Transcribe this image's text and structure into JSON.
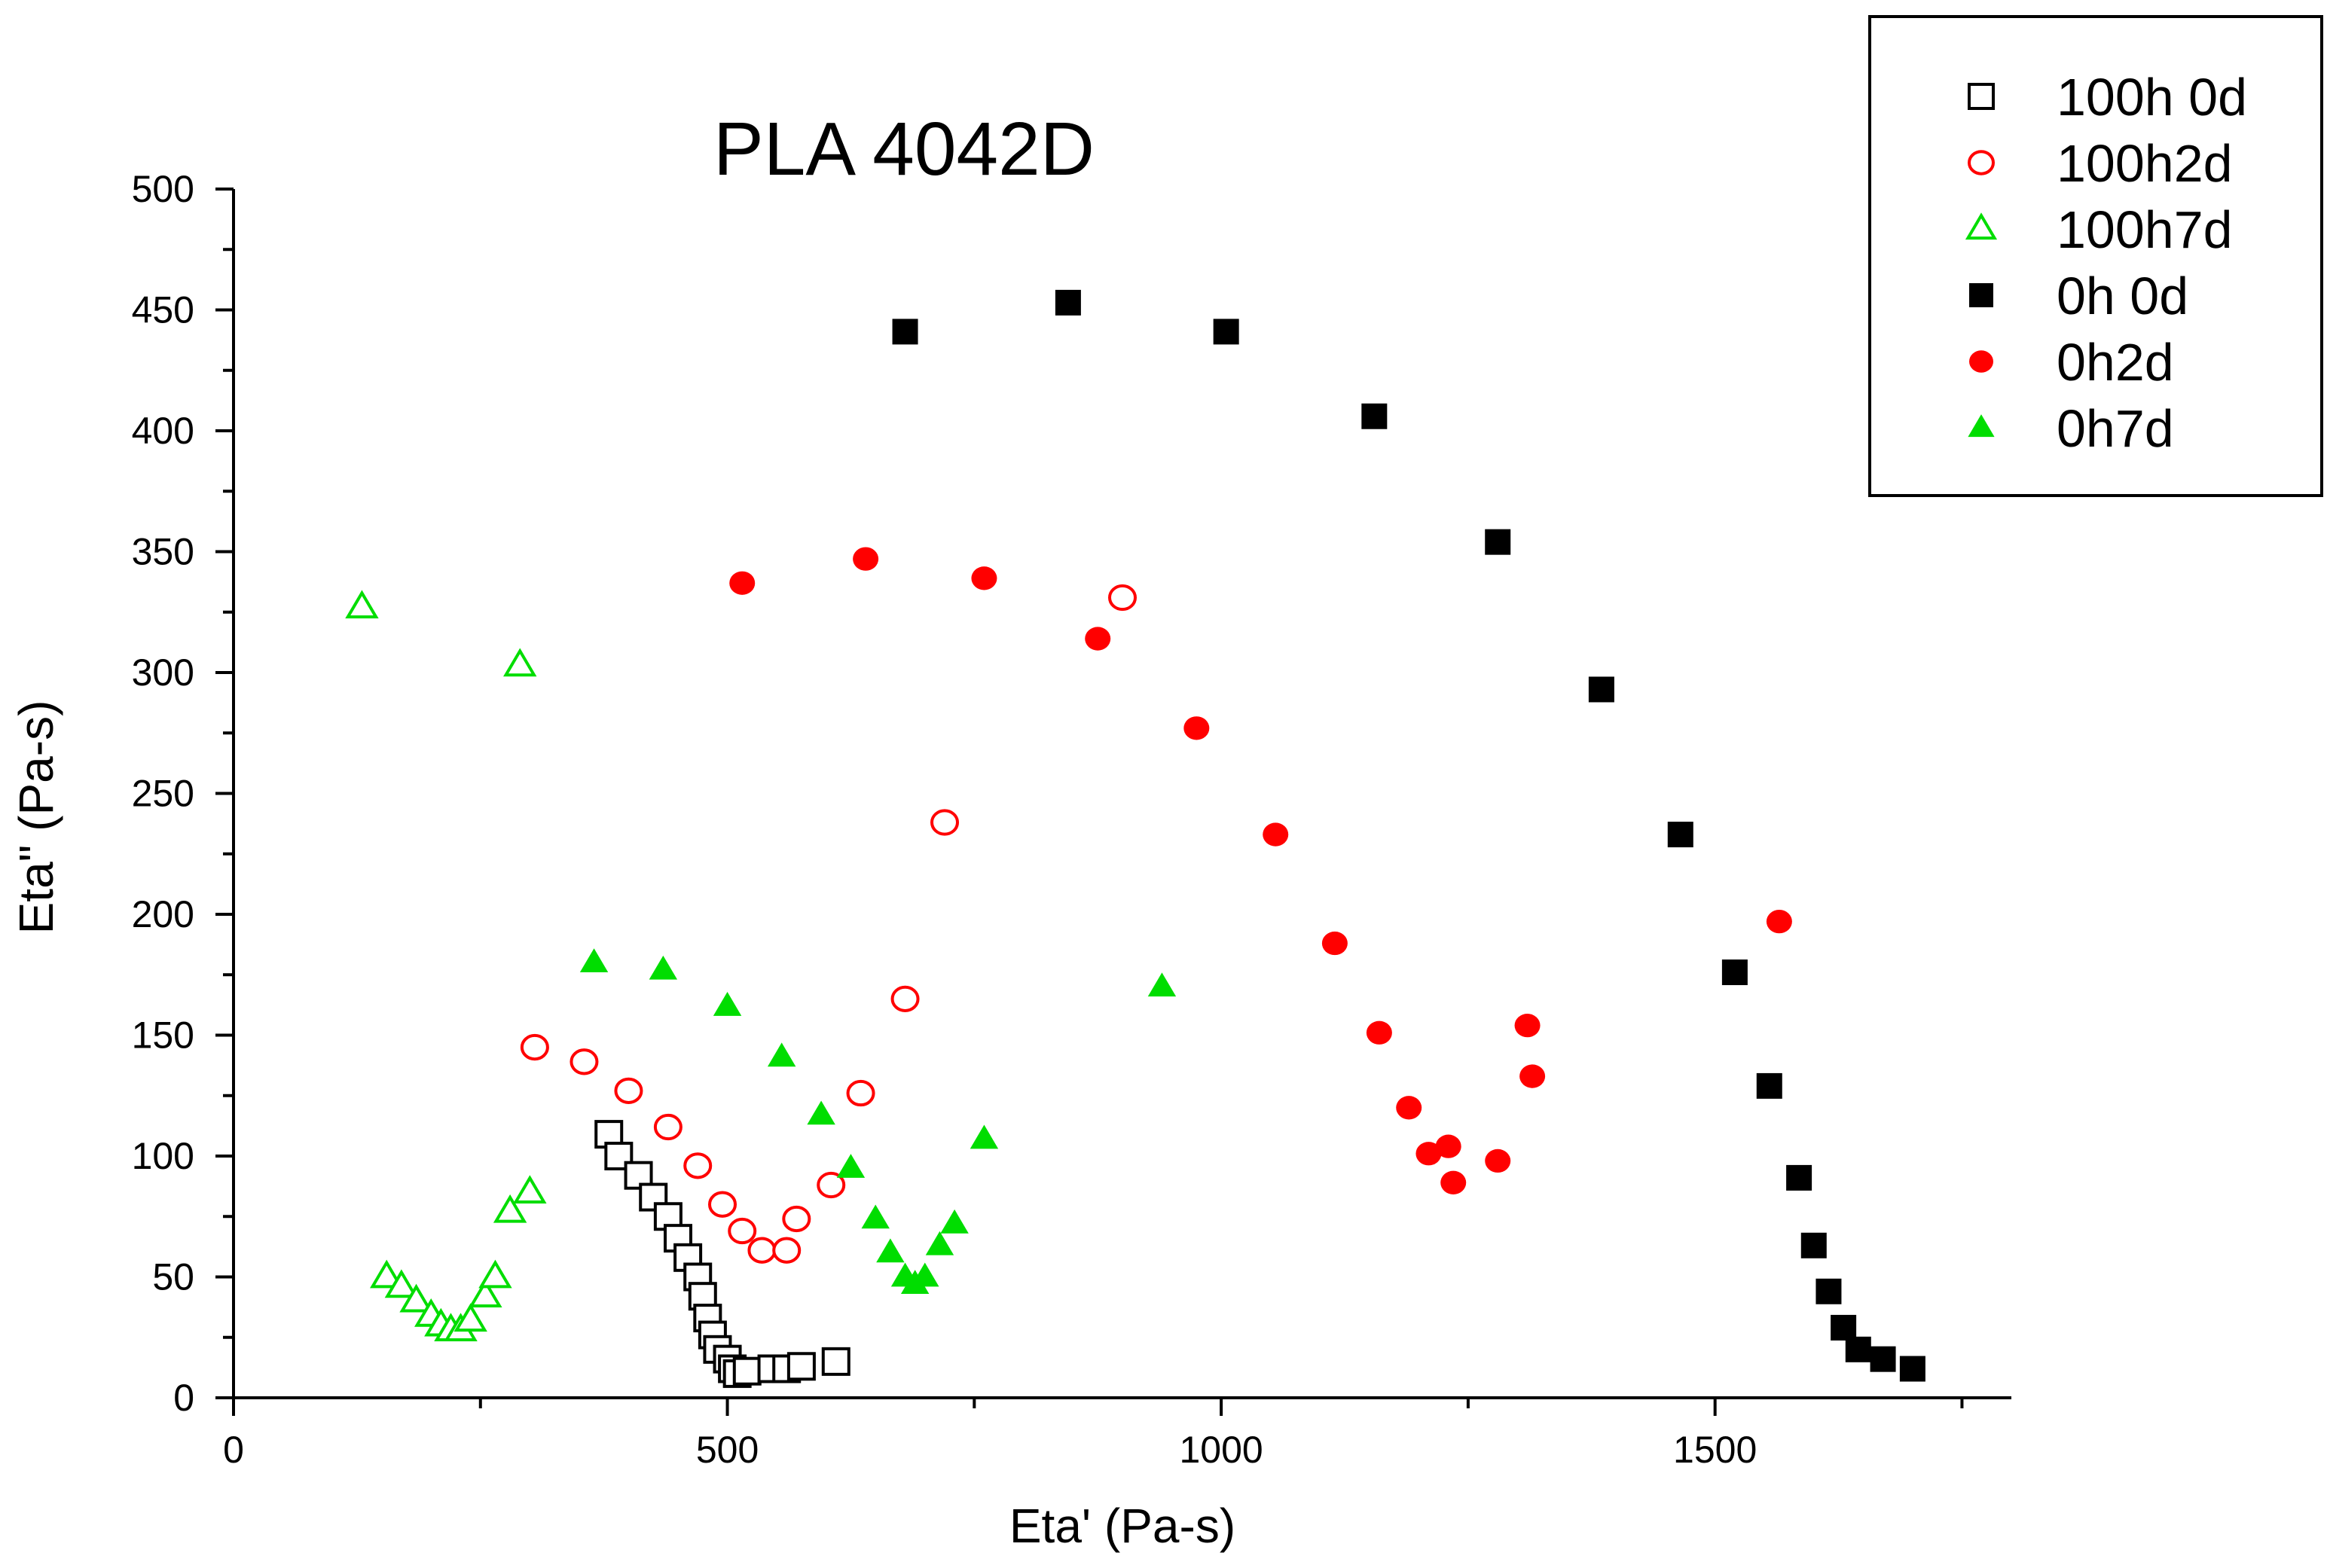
{
  "chart_data": {
    "type": "scatter",
    "title": "PLA 4042D",
    "xlabel": "Eta' (Pa-s)",
    "ylabel": "Eta\" (Pa-s)",
    "xlim": [
      0,
      1800
    ],
    "ylim": [
      0,
      500
    ],
    "xticks": [
      0,
      500,
      1000,
      1500
    ],
    "xticks_minor": [
      250,
      750,
      1250,
      1750
    ],
    "yticks": [
      0,
      50,
      100,
      150,
      200,
      250,
      300,
      350,
      400,
      450,
      500
    ],
    "legend_position": "top-right",
    "grid": false,
    "series": [
      {
        "name": "100h 0d",
        "marker": "square",
        "filled": false,
        "color": "#000000",
        "points": [
          [
            380,
            109
          ],
          [
            390,
            100
          ],
          [
            410,
            92
          ],
          [
            425,
            83
          ],
          [
            440,
            75
          ],
          [
            450,
            66
          ],
          [
            460,
            58
          ],
          [
            470,
            50
          ],
          [
            475,
            42
          ],
          [
            480,
            33
          ],
          [
            485,
            26
          ],
          [
            490,
            20
          ],
          [
            500,
            16
          ],
          [
            505,
            12
          ],
          [
            510,
            10
          ],
          [
            520,
            11
          ],
          [
            545,
            12
          ],
          [
            560,
            12
          ],
          [
            575,
            13
          ],
          [
            610,
            15
          ]
        ]
      },
      {
        "name": "100h2d",
        "marker": "circle",
        "filled": false,
        "color": "#ff0000",
        "points": [
          [
            305,
            145
          ],
          [
            355,
            139
          ],
          [
            400,
            127
          ],
          [
            440,
            112
          ],
          [
            470,
            96
          ],
          [
            495,
            80
          ],
          [
            515,
            69
          ],
          [
            535,
            61
          ],
          [
            560,
            61
          ],
          [
            570,
            74
          ],
          [
            605,
            88
          ],
          [
            635,
            126
          ],
          [
            680,
            165
          ],
          [
            720,
            238
          ],
          [
            900,
            331
          ]
        ]
      },
      {
        "name": "100h7d",
        "marker": "triangle",
        "filled": false,
        "color": "#00dd00",
        "points": [
          [
            130,
            327
          ],
          [
            290,
            303
          ],
          [
            155,
            50
          ],
          [
            170,
            46
          ],
          [
            185,
            40
          ],
          [
            200,
            34
          ],
          [
            210,
            30
          ],
          [
            220,
            28
          ],
          [
            230,
            28
          ],
          [
            240,
            32
          ],
          [
            255,
            42
          ],
          [
            265,
            50
          ],
          [
            280,
            77
          ],
          [
            300,
            85
          ]
        ]
      },
      {
        "name": "0h 0d",
        "marker": "square",
        "filled": true,
        "color": "#000000",
        "points": [
          [
            680,
            441
          ],
          [
            845,
            453
          ],
          [
            1005,
            441
          ],
          [
            1155,
            406
          ],
          [
            1280,
            354
          ],
          [
            1385,
            293
          ],
          [
            1465,
            233
          ],
          [
            1520,
            176
          ],
          [
            1555,
            129
          ],
          [
            1585,
            91
          ],
          [
            1600,
            63
          ],
          [
            1615,
            44
          ],
          [
            1630,
            29
          ],
          [
            1645,
            20
          ],
          [
            1670,
            16
          ],
          [
            1700,
            12
          ]
        ]
      },
      {
        "name": "0h2d",
        "marker": "circle",
        "filled": true,
        "color": "#ff0000",
        "points": [
          [
            515,
            337
          ],
          [
            640,
            347
          ],
          [
            760,
            339
          ],
          [
            875,
            314
          ],
          [
            975,
            277
          ],
          [
            1055,
            233
          ],
          [
            1115,
            188
          ],
          [
            1160,
            151
          ],
          [
            1190,
            120
          ],
          [
            1210,
            101
          ],
          [
            1230,
            104
          ],
          [
            1235,
            89
          ],
          [
            1280,
            98
          ],
          [
            1310,
            154
          ],
          [
            1315,
            133
          ],
          [
            1565,
            197
          ]
        ]
      },
      {
        "name": "0h7d",
        "marker": "triangle",
        "filled": true,
        "color": "#00dd00",
        "points": [
          [
            365,
            180
          ],
          [
            435,
            177
          ],
          [
            500,
            162
          ],
          [
            555,
            141
          ],
          [
            595,
            117
          ],
          [
            625,
            95
          ],
          [
            650,
            74
          ],
          [
            665,
            60
          ],
          [
            680,
            50
          ],
          [
            690,
            47
          ],
          [
            700,
            50
          ],
          [
            715,
            63
          ],
          [
            730,
            72
          ],
          [
            760,
            107
          ],
          [
            940,
            170
          ]
        ]
      }
    ]
  }
}
